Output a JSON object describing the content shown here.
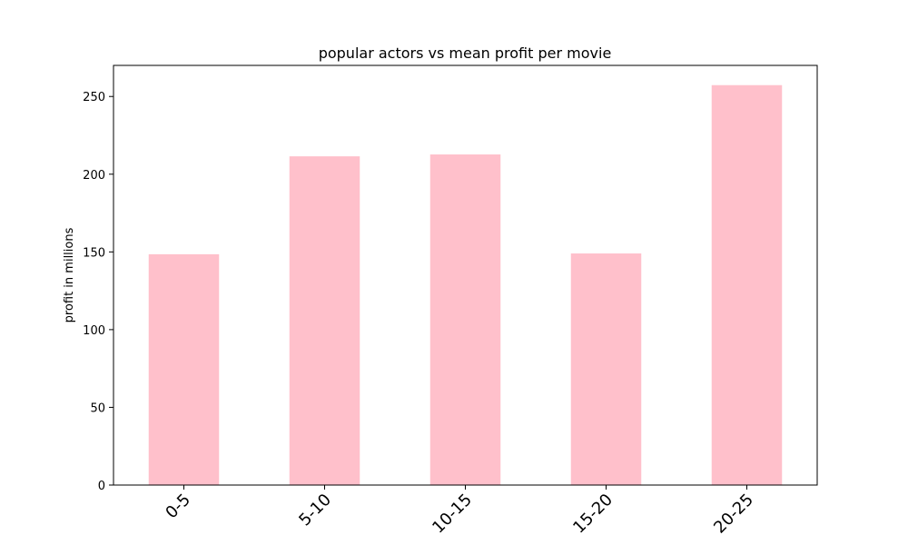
{
  "chart_data": {
    "type": "bar",
    "title": "popular actors vs mean profit per movie",
    "xlabel": "",
    "ylabel": "profit in millions",
    "categories": [
      "0-5",
      "5-10",
      "10-15",
      "15-20",
      "20-25"
    ],
    "values": [
      148.5,
      211.5,
      212.7,
      149.0,
      257.3
    ],
    "ylim": [
      0,
      270
    ],
    "yticks": [
      0,
      50,
      100,
      150,
      200,
      250
    ],
    "bar_color": "#ffc0cb",
    "grid": false,
    "legend": "none"
  }
}
